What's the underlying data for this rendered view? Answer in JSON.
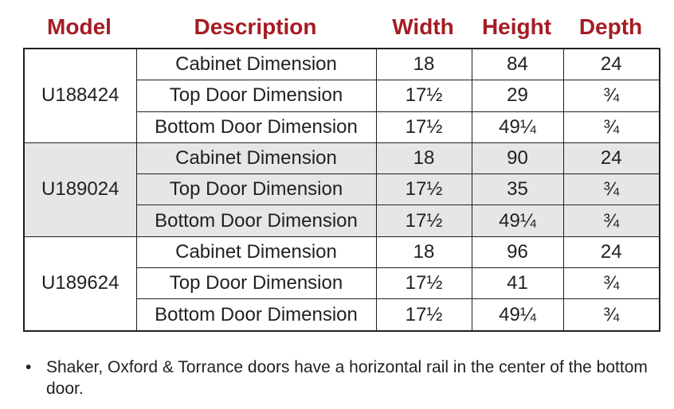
{
  "headers": [
    "Model",
    "Description",
    "Width",
    "Height",
    "Depth"
  ],
  "groups": [
    {
      "model": "U188424",
      "rows": [
        {
          "description": "Cabinet Dimension",
          "width": "18",
          "height": "84",
          "depth": "24"
        },
        {
          "description": "Top Door Dimension",
          "width": "17½",
          "height": "29",
          "depth": "¾"
        },
        {
          "description": "Bottom Door Dimension",
          "width": "17½",
          "height": "49¼",
          "depth": "¾"
        }
      ]
    },
    {
      "model": "U189024",
      "rows": [
        {
          "description": "Cabinet Dimension",
          "width": "18",
          "height": "90",
          "depth": "24"
        },
        {
          "description": "Top Door Dimension",
          "width": "17½",
          "height": "35",
          "depth": "¾"
        },
        {
          "description": "Bottom Door Dimension",
          "width": "17½",
          "height": "49¼",
          "depth": "¾"
        }
      ]
    },
    {
      "model": "U189624",
      "rows": [
        {
          "description": "Cabinet Dimension",
          "width": "18",
          "height": "96",
          "depth": "24"
        },
        {
          "description": "Top Door Dimension",
          "width": "17½",
          "height": "41",
          "depth": "¾"
        },
        {
          "description": "Bottom Door Dimension",
          "width": "17½",
          "height": "49¼",
          "depth": "¾"
        }
      ]
    }
  ],
  "footnote": {
    "bullet": "•",
    "text": "Shaker, Oxford & Torrance doors have a horizontal rail in the center of the bottom door."
  },
  "colors": {
    "header": "#a51c24",
    "shaded_group": "#e6e6e6",
    "text": "#231f20"
  }
}
